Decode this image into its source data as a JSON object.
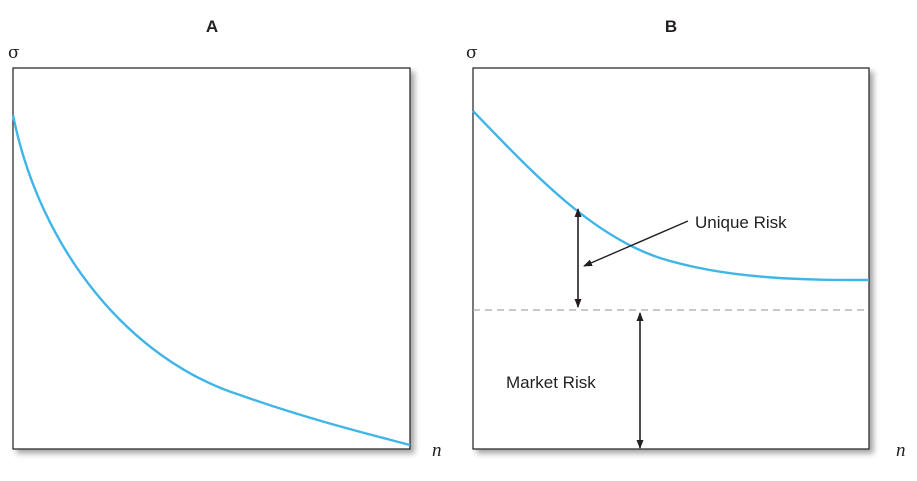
{
  "chart_data": [
    {
      "type": "line",
      "panel_label": "A",
      "ylabel": "σ",
      "xlabel": "n",
      "grid": false,
      "colors": {
        "curve": "#3fb5e8",
        "frame": "#231f20"
      }
    },
    {
      "type": "line",
      "panel_label": "B",
      "ylabel": "σ",
      "xlabel": "n",
      "grid": false,
      "annotations": {
        "unique_risk": "Unique Risk",
        "market_risk": "Market Risk"
      },
      "colors": {
        "curve": "#3fb5e8",
        "frame": "#231f20",
        "dashed_line": "#a7a9ac"
      }
    }
  ]
}
